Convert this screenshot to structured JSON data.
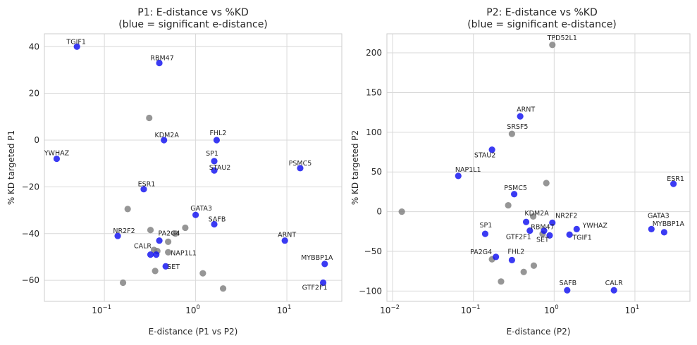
{
  "colors": {
    "significant": "#1010f0",
    "nonsignificant": "#7f7f7f",
    "grid": "#d9d9d9"
  },
  "chart_data": [
    {
      "type": "scatter",
      "title_line1": "P1: E-distance vs %KD",
      "title_line2": "(blue = significant e-distance)",
      "xlabel": "E-distance (P1 vs P2)",
      "ylabel": "% KD targeted P1",
      "xscale": "log",
      "xlim": [
        0.022,
        40
      ],
      "ylim": [
        -69,
        45.5
      ],
      "xticks": [
        {
          "v": 0.1,
          "base": "10",
          "exp": "−1"
        },
        {
          "v": 1,
          "base": "10",
          "exp": "0"
        },
        {
          "v": 10,
          "base": "10",
          "exp": "1"
        }
      ],
      "yticks": [
        40,
        20,
        0,
        -20,
        -40,
        -60
      ],
      "ytick_labels": [
        "40",
        "20",
        "0",
        "−20",
        "−40",
        "−60"
      ],
      "grid": true,
      "points": [
        {
          "label": "TGIF1",
          "x": 0.05,
          "y": 40,
          "sig": true,
          "lx": -1,
          "ly": -4,
          "anchor": "middle"
        },
        {
          "label": "RBM47",
          "x": 0.4,
          "y": 33,
          "sig": true,
          "lx": 4,
          "ly": -4,
          "anchor": "middle"
        },
        {
          "label": "KDM2A",
          "x": 0.45,
          "y": 0,
          "sig": true,
          "lx": 4,
          "ly": -4,
          "anchor": "middle"
        },
        {
          "label": "FHL2",
          "x": 1.7,
          "y": 0,
          "sig": true,
          "lx": 2,
          "ly": -7,
          "anchor": "middle"
        },
        {
          "label": "YWHAZ",
          "x": 0.03,
          "y": -8,
          "sig": true,
          "lx": 0,
          "ly": -5,
          "anchor": "middle"
        },
        {
          "label": "SP1",
          "x": 1.6,
          "y": -9,
          "sig": true,
          "lx": -3,
          "ly": -8,
          "anchor": "middle"
        },
        {
          "label": "STAU2",
          "x": 1.6,
          "y": -13,
          "sig": true,
          "lx": 8,
          "ly": -1,
          "anchor": "middle"
        },
        {
          "label": "PSMC5",
          "x": 14,
          "y": -12,
          "sig": true,
          "lx": 0,
          "ly": -4,
          "anchor": "middle"
        },
        {
          "label": "ESR1",
          "x": 0.27,
          "y": -21,
          "sig": true,
          "lx": 4,
          "ly": -4,
          "anchor": "middle"
        },
        {
          "label": "GATA3",
          "x": 1,
          "y": -32,
          "sig": true,
          "lx": 8,
          "ly": -6,
          "anchor": "middle"
        },
        {
          "label": "SAFB",
          "x": 1.6,
          "y": -36,
          "sig": true,
          "lx": 4,
          "ly": -4,
          "anchor": "middle"
        },
        {
          "label": "NR2F2",
          "x": 0.14,
          "y": -41,
          "sig": true,
          "lx": 9,
          "ly": -4,
          "anchor": "middle"
        },
        {
          "label": "ARNT",
          "x": 9.5,
          "y": -43,
          "sig": true,
          "lx": 3,
          "ly": -5,
          "anchor": "middle"
        },
        {
          "label": "PA2G4",
          "x": 0.4,
          "y": -43,
          "sig": true,
          "lx": 14,
          "ly": -7,
          "anchor": "middle"
        },
        {
          "label": "CALR",
          "x": 0.32,
          "y": -49,
          "sig": true,
          "lx": -11,
          "ly": -9,
          "anchor": "middle"
        },
        {
          "label": "",
          "x": 0.37,
          "y": -49,
          "sig": true
        },
        {
          "label": "NAP1L1",
          "x": 0.5,
          "y": -48,
          "sig": false,
          "lx": 22,
          "ly": 4,
          "anchor": "middle"
        },
        {
          "label": "SET",
          "x": 0.47,
          "y": -54,
          "sig": true,
          "lx": 11,
          "ly": 4,
          "anchor": "middle"
        },
        {
          "label": "MYBBP1A",
          "x": 26,
          "y": -53,
          "sig": true,
          "lx": -11,
          "ly": -6,
          "anchor": "middle"
        },
        {
          "label": "GTF2F1",
          "x": 25,
          "y": -61,
          "sig": true,
          "lx": -12,
          "ly": 10,
          "anchor": "middle"
        },
        {
          "label": "",
          "x": 0.31,
          "y": 9.5,
          "sig": false
        },
        {
          "label": "",
          "x": 0.18,
          "y": -29.5,
          "sig": false
        },
        {
          "label": "",
          "x": 0.32,
          "y": -38.5,
          "sig": false
        },
        {
          "label": "",
          "x": 0.6,
          "y": -40,
          "sig": false
        },
        {
          "label": "",
          "x": 0.77,
          "y": -37.5,
          "sig": false
        },
        {
          "label": "",
          "x": 0.5,
          "y": -43.5,
          "sig": false
        },
        {
          "label": "",
          "x": 0.35,
          "y": -47,
          "sig": false
        },
        {
          "label": "",
          "x": 0.38,
          "y": -47.5,
          "sig": false
        },
        {
          "label": "",
          "x": 0.16,
          "y": -61,
          "sig": false
        },
        {
          "label": "",
          "x": 0.36,
          "y": -56,
          "sig": false
        },
        {
          "label": "",
          "x": 1.2,
          "y": -57,
          "sig": false
        },
        {
          "label": "",
          "x": 2,
          "y": -63.5,
          "sig": false
        }
      ]
    },
    {
      "type": "scatter",
      "title_line1": "P2: E-distance vs %KD",
      "title_line2": "(blue = significant e-distance)",
      "xlabel": "E-distance (P2)",
      "ylabel": "% KD targeted P2",
      "xscale": "log",
      "xlim": [
        0.0085,
        48
      ],
      "ylim": [
        -113,
        224
      ],
      "xticks": [
        {
          "v": 0.01,
          "base": "10",
          "exp": "−2"
        },
        {
          "v": 0.1,
          "base": "10",
          "exp": "−1"
        },
        {
          "v": 1,
          "base": "10",
          "exp": "0"
        },
        {
          "v": 10,
          "base": "10",
          "exp": "1"
        }
      ],
      "yticks": [
        200,
        150,
        100,
        50,
        0,
        -50,
        -100
      ],
      "ytick_labels": [
        "200",
        "150",
        "100",
        "50",
        "0",
        "−50",
        "−100"
      ],
      "grid": true,
      "points": [
        {
          "label": "TPD52L1",
          "x": 0.95,
          "y": 210,
          "sig": false,
          "lx": 14,
          "ly": -7,
          "anchor": "middle"
        },
        {
          "label": "ARNT",
          "x": 0.38,
          "y": 120,
          "sig": true,
          "lx": 8,
          "ly": -7,
          "anchor": "middle"
        },
        {
          "label": "SRSF5",
          "x": 0.3,
          "y": 98,
          "sig": false,
          "lx": 8,
          "ly": -7,
          "anchor": "middle"
        },
        {
          "label": "STAU2",
          "x": 0.17,
          "y": 78,
          "sig": true,
          "lx": -10,
          "ly": 11,
          "anchor": "middle"
        },
        {
          "label": "NAP1L1",
          "x": 0.065,
          "y": 45,
          "sig": true,
          "lx": 14,
          "ly": -6,
          "anchor": "middle"
        },
        {
          "label": "ESR1",
          "x": 30,
          "y": 35,
          "sig": true,
          "lx": 3,
          "ly": -4,
          "anchor": "middle"
        },
        {
          "label": "PSMC5",
          "x": 0.32,
          "y": 22,
          "sig": true,
          "lx": 2,
          "ly": -6,
          "anchor": "middle"
        },
        {
          "label": "",
          "x": 0.8,
          "y": 36,
          "sig": false
        },
        {
          "label": "",
          "x": 0.27,
          "y": 8,
          "sig": false
        },
        {
          "label": "",
          "x": 0.013,
          "y": 0,
          "sig": false
        },
        {
          "label": "KDM2A",
          "x": 0.45,
          "y": -13,
          "sig": true,
          "lx": 15,
          "ly": -9,
          "anchor": "middle"
        },
        {
          "label": "",
          "x": 0.55,
          "y": -6,
          "sig": false
        },
        {
          "label": "NR2F2",
          "x": 0.95,
          "y": -14,
          "sig": true,
          "lx": 20,
          "ly": -7,
          "anchor": "middle"
        },
        {
          "label": "SP1",
          "x": 0.14,
          "y": -28,
          "sig": true,
          "lx": 1,
          "ly": -9,
          "anchor": "middle"
        },
        {
          "label": "GTF2F1",
          "x": 0.5,
          "y": -24,
          "sig": true,
          "lx": -16,
          "ly": 12,
          "anchor": "middle"
        },
        {
          "label": "RBM47",
          "x": 0.75,
          "y": -24,
          "sig": true,
          "lx": -2,
          "ly": -2,
          "anchor": "middle"
        },
        {
          "label": "SET",
          "x": 0.88,
          "y": -30,
          "sig": true,
          "lx": -10,
          "ly": 9,
          "anchor": "middle"
        },
        {
          "label": "",
          "x": 0.72,
          "y": -28,
          "sig": false
        },
        {
          "label": "YWHAZ",
          "x": 1.9,
          "y": -22,
          "sig": true,
          "lx": 26,
          "ly": -2,
          "anchor": "middle"
        },
        {
          "label": "TGIF1",
          "x": 1.55,
          "y": -29,
          "sig": true,
          "lx": 18,
          "ly": 7,
          "anchor": "middle"
        },
        {
          "label": "GATA3",
          "x": 16,
          "y": -22,
          "sig": true,
          "lx": 10,
          "ly": -16,
          "anchor": "middle"
        },
        {
          "label": "MYBBP1A",
          "x": 23,
          "y": -26,
          "sig": true,
          "lx": 6,
          "ly": -9,
          "anchor": "middle"
        },
        {
          "label": "PA2G4",
          "x": 0.19,
          "y": -57,
          "sig": true,
          "lx": -21,
          "ly": -4,
          "anchor": "middle"
        },
        {
          "label": "FHL2",
          "x": 0.3,
          "y": -61,
          "sig": true,
          "lx": 6,
          "ly": -9,
          "anchor": "middle"
        },
        {
          "label": "",
          "x": 0.17,
          "y": -60,
          "sig": false
        },
        {
          "label": "",
          "x": 0.22,
          "y": -88,
          "sig": false
        },
        {
          "label": "",
          "x": 0.42,
          "y": -76,
          "sig": false
        },
        {
          "label": "",
          "x": 0.56,
          "y": -68,
          "sig": false
        },
        {
          "label": "SAFB",
          "x": 1.45,
          "y": -99,
          "sig": true,
          "lx": 1,
          "ly": -7,
          "anchor": "middle"
        },
        {
          "label": "CALR",
          "x": 5.5,
          "y": -99,
          "sig": true,
          "lx": 0,
          "ly": -7,
          "anchor": "middle"
        }
      ]
    }
  ]
}
